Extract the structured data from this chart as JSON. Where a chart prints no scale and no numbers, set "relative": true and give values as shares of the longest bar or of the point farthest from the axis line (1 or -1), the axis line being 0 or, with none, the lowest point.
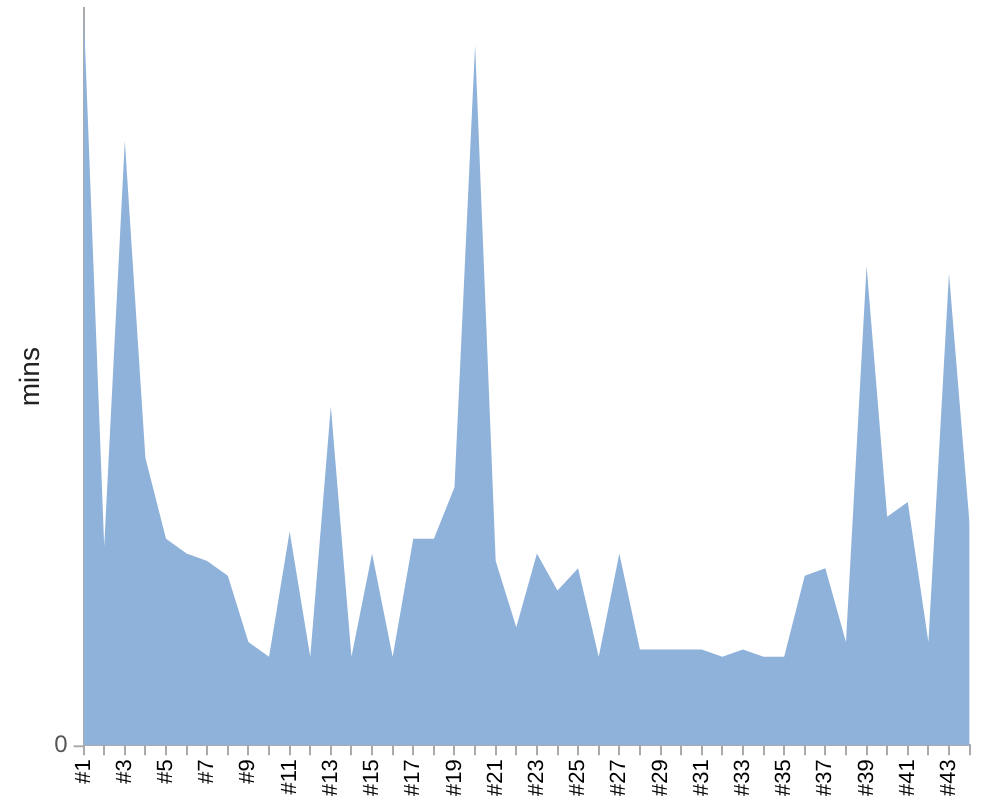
{
  "chart_data": {
    "type": "area",
    "ylabel": "mins",
    "relative": true,
    "marker": "none",
    "annotations": [
      "0"
    ],
    "categories": [
      "#1",
      null,
      "#3",
      null,
      "#5",
      null,
      "#7",
      null,
      "#9",
      null,
      "#11",
      null,
      "#13",
      null,
      "#15",
      null,
      "#17",
      null,
      "#19",
      null,
      "#21",
      null,
      "#23",
      null,
      "#25",
      null,
      "#27",
      null,
      "#29",
      null,
      "#31",
      null,
      "#33",
      null,
      "#35",
      null,
      "#37",
      null,
      "#39",
      null,
      "#41",
      null,
      "#43",
      null
    ],
    "color": "#8fb2db",
    "values": [
      1,
      0.27,
      0.82,
      0.39,
      0.28,
      0.26,
      0.25,
      0.23,
      0.14,
      0.12,
      0.29,
      0.12,
      0.46,
      0.12,
      0.26,
      0.12,
      0.28,
      0.28,
      0.35,
      0.95,
      0.25,
      0.16,
      0.26,
      0.21,
      0.24,
      0.12,
      0.26,
      0.13,
      0.13,
      0.13,
      0.13,
      0.12,
      0.13,
      0.12,
      0.12,
      0.23,
      0.24,
      0.14,
      0.65,
      0.31,
      0.33,
      0.14,
      0.64,
      0.3
    ]
  }
}
